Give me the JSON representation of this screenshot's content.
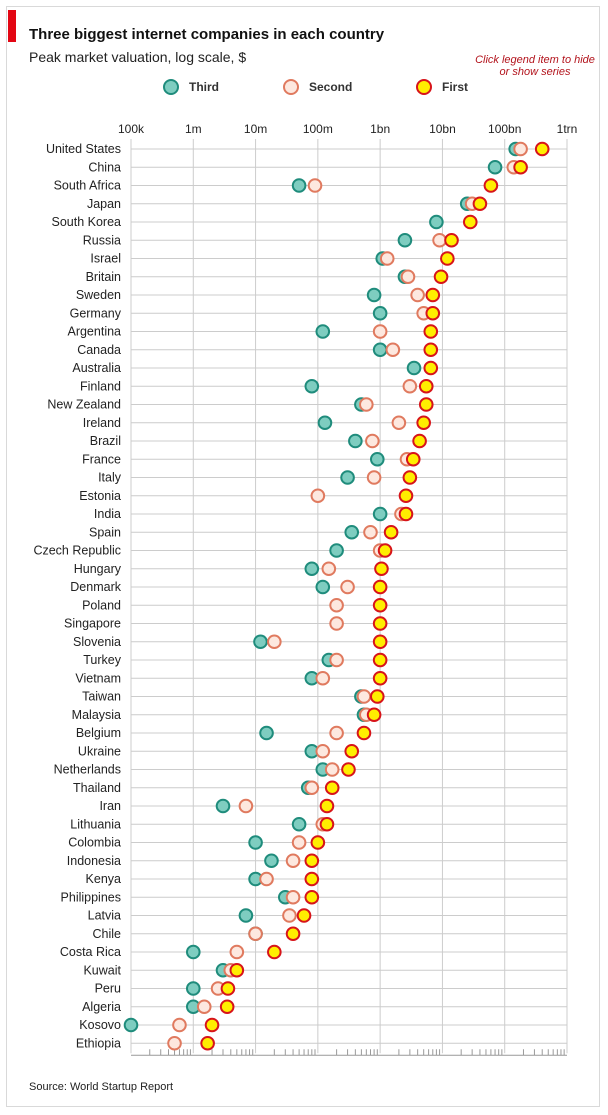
{
  "header": {
    "title": "Three biggest internet companies in each country",
    "subtitle": "Peak market valuation, log scale, $",
    "hint": "Click legend item to hide or show series"
  },
  "footer": {
    "source": "Source: World Startup Report"
  },
  "colors": {
    "accent": "#e30613",
    "third_fill": "#7ecdc0",
    "third_stroke": "#1f8c7c",
    "second_fill": "#fde8df",
    "second_stroke": "#e07a5f",
    "first_fill": "#ffee00",
    "first_stroke": "#d7141a",
    "grid": "#cccccc",
    "axis": "#999999",
    "hint": "#b3141d"
  },
  "legend": [
    {
      "label": "Third",
      "series": "Third"
    },
    {
      "label": "Second",
      "series": "Second"
    },
    {
      "label": "First",
      "series": "First"
    }
  ],
  "chart_data": {
    "type": "scatter",
    "title": "Three biggest internet companies in each country",
    "xlabel": "Peak market valuation, log scale, $",
    "xscale": "log",
    "xlim": [
      100000,
      1000000000000
    ],
    "x_ticks": [
      {
        "value": 100000,
        "label": "100k"
      },
      {
        "value": 1000000,
        "label": "1m"
      },
      {
        "value": 10000000,
        "label": "10m"
      },
      {
        "value": 100000000,
        "label": "100m"
      },
      {
        "value": 1000000000,
        "label": "1bn"
      },
      {
        "value": 10000000000,
        "label": "10bn"
      },
      {
        "value": 100000000000,
        "label": "100bn"
      },
      {
        "value": 1000000000000,
        "label": "1trn"
      }
    ],
    "categories": [
      "United States",
      "China",
      "South Africa",
      "Japan",
      "South Korea",
      "Russia",
      "Israel",
      "Britain",
      "Sweden",
      "Germany",
      "Argentina",
      "Canada",
      "Australia",
      "Finland",
      "New Zealand",
      "Ireland",
      "Brazil",
      "France",
      "Italy",
      "Estonia",
      "India",
      "Spain",
      "Czech Republic",
      "Hungary",
      "Denmark",
      "Poland",
      "Singapore",
      "Slovenia",
      "Turkey",
      "Vietnam",
      "Taiwan",
      "Malaysia",
      "Belgium",
      "Ukraine",
      "Netherlands",
      "Thailand",
      "Iran",
      "Lithuania",
      "Colombia",
      "Indonesia",
      "Kenya",
      "Philippines",
      "Latvia",
      "Chile",
      "Costa Rica",
      "Kuwait",
      "Peru",
      "Algeria",
      "Kosovo",
      "Ethiopia"
    ],
    "series": [
      {
        "name": "Third",
        "values": [
          150000000000,
          70000000000,
          50000000,
          25000000000,
          8000000000,
          2500000000,
          1100000000,
          2500000000,
          800000000,
          1000000000,
          120000000,
          1000000000,
          3500000000,
          80000000,
          500000000,
          130000000,
          400000000,
          900000000,
          300000000,
          null,
          1000000000,
          350000000,
          200000000,
          80000000,
          120000000,
          null,
          null,
          12000000,
          150000000,
          80000000,
          500000000,
          550000000,
          15000000,
          80000000,
          120000000,
          70000000,
          3000000,
          50000000,
          10000000,
          18000000,
          10000000,
          30000000,
          7000000,
          10000000,
          1000000,
          3000000,
          1000000,
          1000000,
          100000,
          null
        ]
      },
      {
        "name": "Second",
        "values": [
          180000000000,
          140000000000,
          90000000,
          30000000000,
          null,
          9000000000,
          1300000000,
          2800000000,
          4000000000,
          5000000000,
          1000000000,
          1600000000,
          null,
          3000000000,
          600000000,
          2000000000,
          750000000,
          2700000000,
          800000000,
          100000000,
          2200000000,
          700000000,
          1000000000,
          150000000,
          300000000,
          200000000,
          200000000,
          20000000,
          200000000,
          120000000,
          550000000,
          600000000,
          200000000,
          120000000,
          170000000,
          80000000,
          7000000,
          120000000,
          50000000,
          40000000,
          15000000,
          40000000,
          35000000,
          10000000,
          5000000,
          4000000,
          2500000,
          1500000,
          600000,
          500000
        ]
      },
      {
        "name": "First",
        "values": [
          400000000000,
          180000000000,
          60000000000,
          40000000000,
          28000000000,
          14000000000,
          12000000000,
          9500000000,
          7000000000,
          7000000000,
          6500000000,
          6500000000,
          6500000000,
          5500000000,
          5500000000,
          5000000000,
          4300000000,
          3400000000,
          3000000000,
          2600000000,
          2600000000,
          1500000000,
          1200000000,
          1050000000,
          1000000000,
          1000000000,
          1000000000,
          1000000000,
          1000000000,
          1000000000,
          900000000,
          800000000,
          550000000,
          350000000,
          310000000,
          170000000,
          140000000,
          140000000,
          100000000,
          80000000,
          80000000,
          80000000,
          60000000,
          40000000,
          20000000,
          5000000,
          3600000,
          3500000,
          2000000,
          1700000
        ]
      }
    ]
  }
}
